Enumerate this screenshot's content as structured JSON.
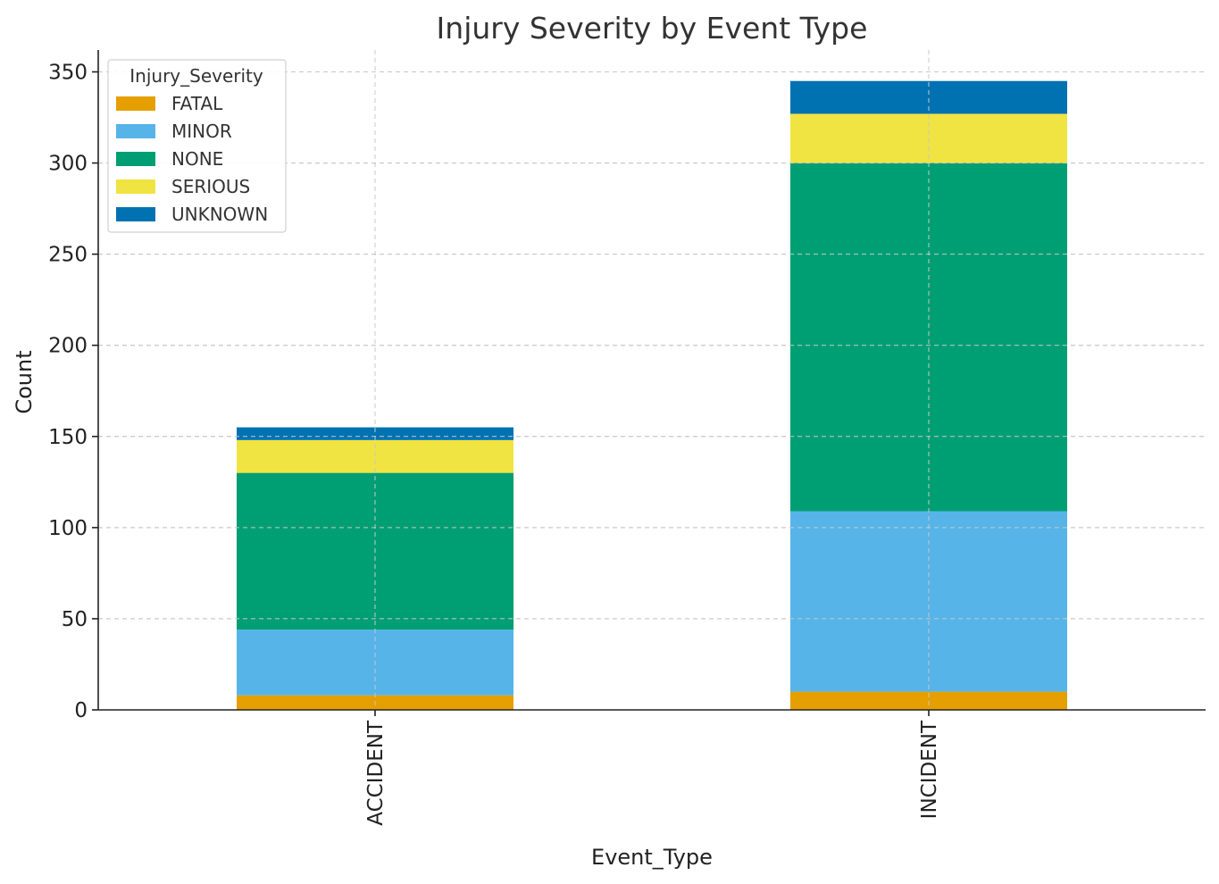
{
  "chart_data": {
    "type": "bar",
    "stacked": true,
    "title": "Injury Severity by Event Type",
    "xlabel": "Event_Type",
    "ylabel": "Count",
    "categories": [
      "ACCIDENT",
      "INCIDENT"
    ],
    "ylim": [
      0,
      362
    ],
    "yticks": [
      0,
      50,
      100,
      150,
      200,
      250,
      300,
      350
    ],
    "grid": true,
    "legend": {
      "title": "Injury_Severity",
      "placement": "top-left"
    },
    "series": [
      {
        "name": "FATAL",
        "color": "#E69F00",
        "values": [
          8,
          10
        ]
      },
      {
        "name": "MINOR",
        "color": "#56B4E9",
        "values": [
          36,
          99
        ]
      },
      {
        "name": "NONE",
        "color": "#009E73",
        "values": [
          86,
          191
        ]
      },
      {
        "name": "SERIOUS",
        "color": "#F0E442",
        "values": [
          18,
          27
        ]
      },
      {
        "name": "UNKNOWN",
        "color": "#0072B2",
        "values": [
          7,
          18
        ]
      }
    ]
  }
}
